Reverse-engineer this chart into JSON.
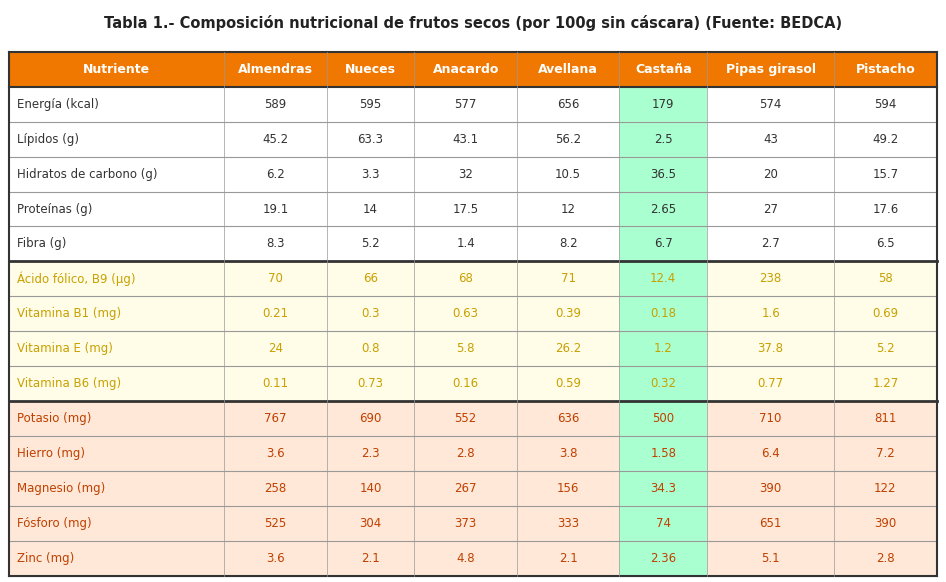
{
  "title": "Tabla 1.- Composición nutricional de frutos secos (por 100g sin cáscara) (Fuente: BEDCA)",
  "columns": [
    "Nutriente",
    "Almendras",
    "Nueces",
    "Anacardo",
    "Avellana",
    "Castaña",
    "Pipas girasol",
    "Pistacho"
  ],
  "rows": [
    [
      "Energía (kcal)",
      "589",
      "595",
      "577",
      "656",
      "179",
      "574",
      "594"
    ],
    [
      "Lípidos (g)",
      "45.2",
      "63.3",
      "43.1",
      "56.2",
      "2.5",
      "43",
      "49.2"
    ],
    [
      "Hidratos de carbono (g)",
      "6.2",
      "3.3",
      "32",
      "10.5",
      "36.5",
      "20",
      "15.7"
    ],
    [
      "Proteínas (g)",
      "19.1",
      "14",
      "17.5",
      "12",
      "2.65",
      "27",
      "17.6"
    ],
    [
      "Fibra (g)",
      "8.3",
      "5.2",
      "1.4",
      "8.2",
      "6.7",
      "2.7",
      "6.5"
    ],
    [
      "Ácido fólico, B9 (µg)",
      "70",
      "66",
      "68",
      "71",
      "12.4",
      "238",
      "58"
    ],
    [
      "Vitamina B1 (mg)",
      "0.21",
      "0.3",
      "0.63",
      "0.39",
      "0.18",
      "1.6",
      "0.69"
    ],
    [
      "Vitamina E (mg)",
      "24",
      "0.8",
      "5.8",
      "26.2",
      "1.2",
      "37.8",
      "5.2"
    ],
    [
      "Vitamina B6 (mg)",
      "0.11",
      "0.73",
      "0.16",
      "0.59",
      "0.32",
      "0.77",
      "1.27"
    ],
    [
      "Potasio (mg)",
      "767",
      "690",
      "552",
      "636",
      "500",
      "710",
      "811"
    ],
    [
      "Hierro (mg)",
      "3.6",
      "2.3",
      "2.8",
      "3.8",
      "1.58",
      "6.4",
      "7.2"
    ],
    [
      "Magnesio (mg)",
      "258",
      "140",
      "267",
      "156",
      "34.3",
      "390",
      "122"
    ],
    [
      "Fósforo (mg)",
      "525",
      "304",
      "373",
      "333",
      "74",
      "651",
      "390"
    ],
    [
      "Zinc (mg)",
      "3.6",
      "2.1",
      "4.8",
      "2.1",
      "2.36",
      "5.1",
      "2.8"
    ]
  ],
  "white_rows": [
    0,
    1,
    2,
    3,
    4
  ],
  "yellow_rows": [
    5,
    6,
    7,
    8
  ],
  "salmon_rows": [
    9,
    10,
    11,
    12,
    13
  ],
  "castana_col_idx": 5,
  "row_bg_white": "#FFFFFF",
  "row_bg_yellow": "#FFFDE8",
  "row_bg_salmon": "#FFE8D8",
  "castana_col_color": "#AAFFD0",
  "header_bg": "#F07800",
  "header_text_color": "#FFFFFF",
  "text_color_white": "#333333",
  "text_color_yellow": "#C8A000",
  "text_color_salmon": "#C04000",
  "border_heavy": "#333333",
  "border_light": "#999999",
  "col_widths_raw": [
    2.2,
    1.05,
    0.9,
    1.05,
    1.05,
    0.9,
    1.3,
    1.05
  ],
  "figsize": [
    9.46,
    5.82
  ],
  "dpi": 100,
  "title_fontsize": 10.5,
  "header_fontsize": 9,
  "cell_fontsize": 8.5
}
